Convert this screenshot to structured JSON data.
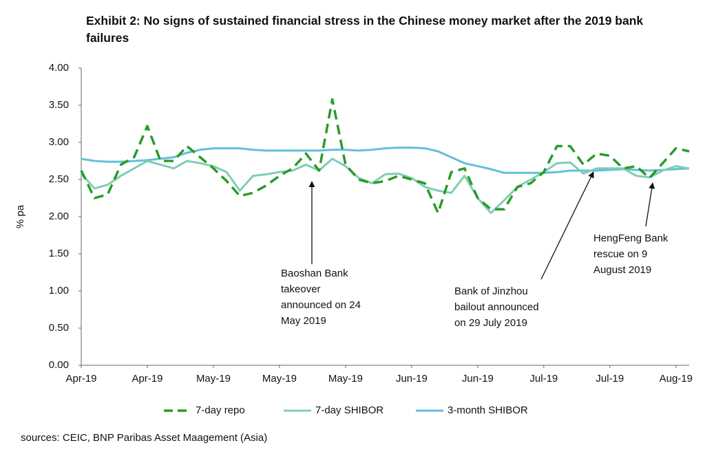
{
  "chart_data": {
    "type": "line",
    "title": "Exhibit 2: No signs of sustained financial stress in the Chinese money market after the 2019 bank failures",
    "ylabel": "% pa",
    "source": "sources: CEIC, BNP Paribas Asset Maagement (Asia)",
    "categories": [
      "Apr-19",
      null,
      null,
      null,
      null,
      "Apr-19",
      null,
      null,
      null,
      null,
      "May-19",
      null,
      null,
      null,
      null,
      "May-19",
      null,
      null,
      null,
      null,
      "May-19",
      null,
      null,
      null,
      null,
      "Jun-19",
      null,
      null,
      null,
      null,
      "Jun-19",
      null,
      null,
      null,
      null,
      "Jul-19",
      null,
      null,
      null,
      null,
      "Jul-19",
      null,
      null,
      null,
      null,
      "Aug-19",
      null
    ],
    "series": [
      {
        "name": "7-day repo",
        "color": "#2a9a2a",
        "dashed": true,
        "values": [
          2.62,
          2.25,
          2.3,
          2.7,
          2.8,
          3.22,
          2.75,
          2.75,
          2.95,
          2.8,
          2.65,
          2.48,
          2.28,
          2.32,
          2.42,
          2.55,
          2.65,
          2.85,
          2.62,
          3.58,
          2.7,
          2.5,
          2.45,
          2.48,
          2.55,
          2.5,
          2.45,
          2.05,
          2.6,
          2.65,
          2.25,
          2.1,
          2.1,
          2.4,
          2.45,
          2.6,
          2.95,
          2.95,
          2.7,
          2.85,
          2.82,
          2.65,
          2.68,
          2.52,
          2.72,
          2.92,
          2.88
        ]
      },
      {
        "name": "7-day SHIBOR",
        "color": "#7fcdb4",
        "dashed": false,
        "values": [
          2.58,
          2.38,
          2.43,
          2.55,
          2.65,
          2.75,
          2.7,
          2.65,
          2.75,
          2.72,
          2.68,
          2.6,
          2.35,
          2.55,
          2.57,
          2.6,
          2.62,
          2.7,
          2.62,
          2.78,
          2.68,
          2.52,
          2.45,
          2.57,
          2.58,
          2.52,
          2.4,
          2.35,
          2.32,
          2.55,
          2.25,
          2.05,
          2.22,
          2.4,
          2.5,
          2.6,
          2.72,
          2.73,
          2.58,
          2.65,
          2.65,
          2.65,
          2.55,
          2.53,
          2.62,
          2.68,
          2.65
        ]
      },
      {
        "name": "3-month SHIBOR",
        "color": "#5fc0da",
        "dashed": false,
        "values": [
          2.78,
          2.75,
          2.74,
          2.74,
          2.75,
          2.76,
          2.78,
          2.8,
          2.86,
          2.9,
          2.92,
          2.92,
          2.92,
          2.9,
          2.89,
          2.89,
          2.89,
          2.89,
          2.89,
          2.9,
          2.9,
          2.89,
          2.9,
          2.92,
          2.93,
          2.93,
          2.92,
          2.88,
          2.8,
          2.72,
          2.68,
          2.64,
          2.59,
          2.59,
          2.59,
          2.59,
          2.6,
          2.62,
          2.62,
          2.62,
          2.63,
          2.64,
          2.63,
          2.62,
          2.63,
          2.64,
          2.65
        ]
      }
    ],
    "ylim": [
      0,
      4
    ],
    "yticks": [
      {
        "value": 0,
        "label": "0.00"
      },
      {
        "value": 0.5,
        "label": "0.50"
      },
      {
        "value": 1,
        "label": "1.00"
      },
      {
        "value": 1.5,
        "label": "1.50"
      },
      {
        "value": 2,
        "label": "2.00"
      },
      {
        "value": 2.5,
        "label": "2.50"
      },
      {
        "value": 3,
        "label": "3.00"
      },
      {
        "value": 3.5,
        "label": "3.50"
      },
      {
        "value": 4,
        "label": "4.00"
      }
    ],
    "grid": false,
    "legend": "bottom",
    "annotations": [
      {
        "lines": [
          "Baoshan Bank",
          "takeover",
          "announced on 24",
          "May 2019"
        ]
      },
      {
        "lines": [
          "Bank of Jinzhou",
          "bailout announced",
          "on 29 July 2019"
        ]
      },
      {
        "lines": [
          "HengFeng Bank",
          "rescue on 9",
          "August 2019"
        ]
      }
    ]
  }
}
